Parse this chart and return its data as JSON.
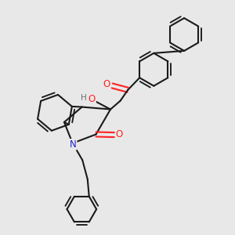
{
  "bg": "#e8e8e8",
  "bc": "#1a1a1a",
  "Oc": "#ff2222",
  "Nc": "#2222cc",
  "Hc": "#707070",
  "lw": 1.5,
  "lw_thin": 1.3,
  "figsize": [
    3.0,
    3.0
  ],
  "dpi": 100,
  "xlim": [
    0,
    10
  ],
  "ylim": [
    0,
    10
  ]
}
